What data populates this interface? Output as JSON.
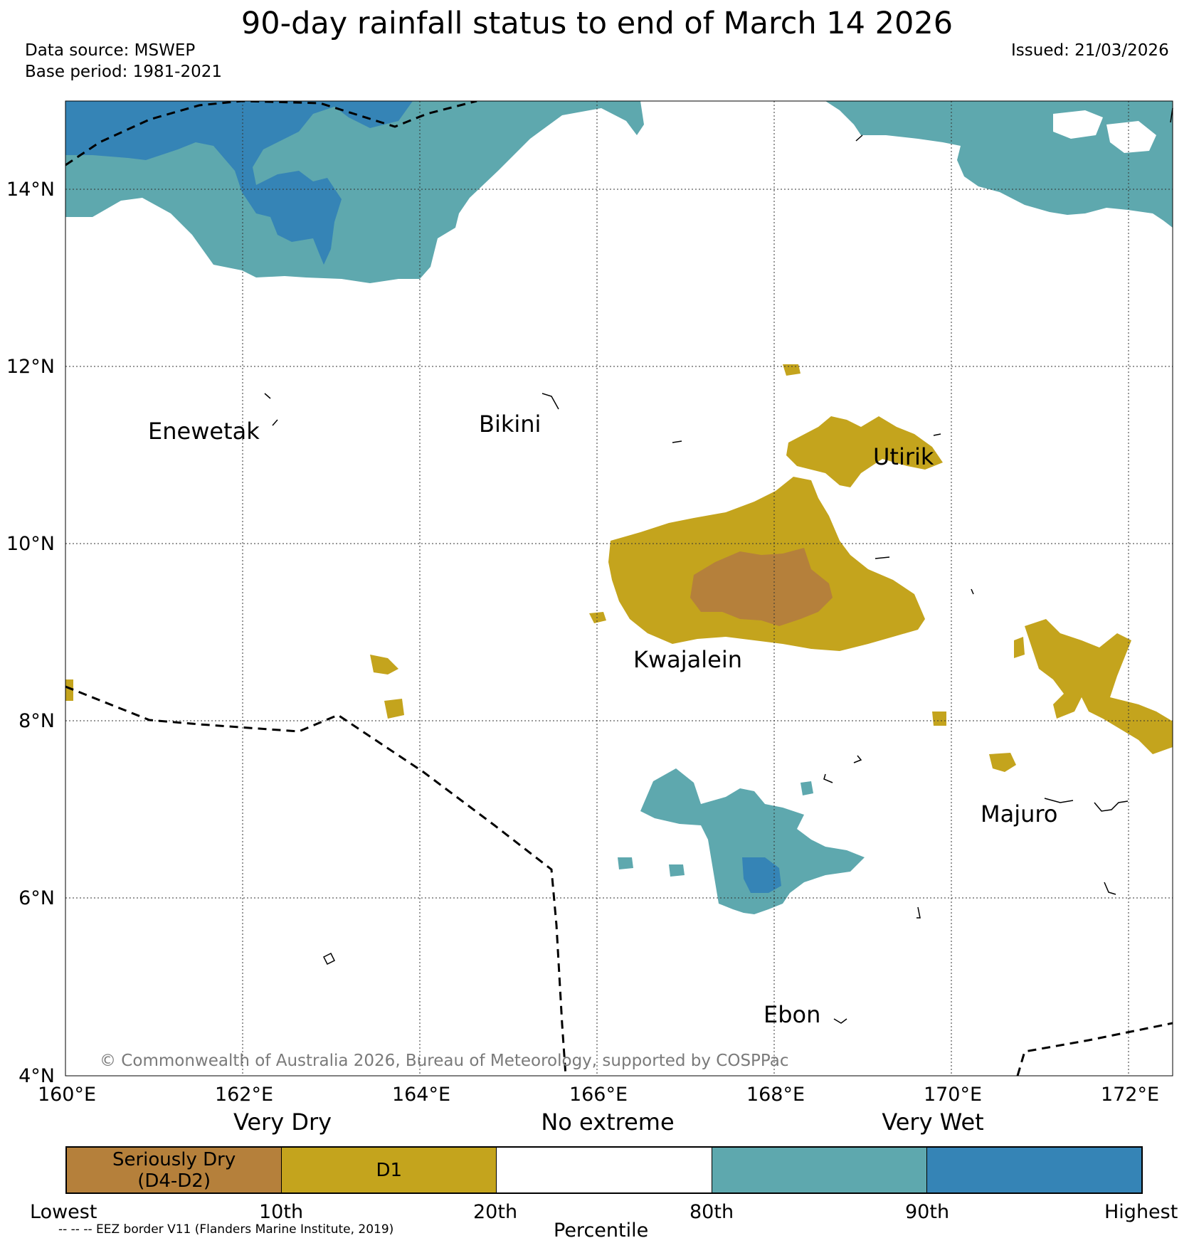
{
  "title": "90-day rainfall status to end of March 14 2026",
  "data_source": "Data source: MSWEP",
  "base_period": "Base period: 1981-2021",
  "issued": "Issued: 21/03/2026",
  "lat_ticks": [
    "14°N",
    "12°N",
    "10°N",
    "8°N",
    "6°N",
    "4°N"
  ],
  "lon_ticks": [
    "160°E",
    "162°E",
    "164°E",
    "166°E",
    "168°E",
    "170°E",
    "172°E"
  ],
  "category_labels": {
    "very_dry": "Very Dry",
    "no_extreme": "No extreme",
    "very_wet": "Very Wet"
  },
  "places": [
    {
      "name": "Enewetak"
    },
    {
      "name": "Bikini"
    },
    {
      "name": "Utirik"
    },
    {
      "name": "Kwajalein"
    },
    {
      "name": "Majuro"
    },
    {
      "name": "Ebon"
    }
  ],
  "copyright": "© Commonwealth of Australia 2026, Bureau of Meteorology, supported by COSPPac",
  "legend": {
    "segments": [
      {
        "label": "Seriously Dry",
        "sublabel": "(D4-D2)",
        "color": "#b5803b"
      },
      {
        "label": "D1",
        "sublabel": "",
        "color": "#c4a41d"
      },
      {
        "label": "",
        "sublabel": "",
        "color": "#ffffff"
      },
      {
        "label": "",
        "sublabel": "",
        "color": "#5ea8ae"
      },
      {
        "label": "",
        "sublabel": "",
        "color": "#3584b6"
      }
    ],
    "ticks": [
      "Lowest",
      "10th",
      "20th",
      "80th",
      "90th",
      "Highest"
    ],
    "axis_label": "Percentile"
  },
  "eez_note": "-- -- -- EEZ border V11 (Flanders Marine Institute, 2019)",
  "colors": {
    "seriously_dry": "#b5803b",
    "d1": "#c4a41d",
    "very_wet_80_90": "#5ea8ae",
    "very_wet_90_plus": "#3584b6"
  }
}
